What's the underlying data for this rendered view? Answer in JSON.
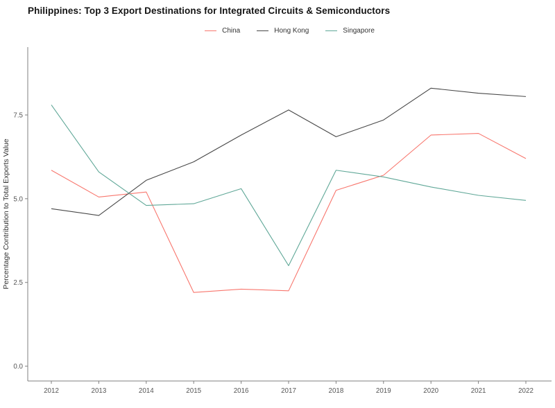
{
  "title": "Philippines: Top 3 Export Destinations for Integrated Circuits & Semiconductors",
  "chart_data": {
    "type": "line",
    "x": [
      2012,
      2013,
      2014,
      2015,
      2016,
      2017,
      2018,
      2019,
      2020,
      2021,
      2022
    ],
    "series": [
      {
        "name": "China",
        "color": "#F8766D",
        "values": [
          5.85,
          5.05,
          5.2,
          2.2,
          2.3,
          2.25,
          5.25,
          5.7,
          6.9,
          6.95,
          6.2
        ]
      },
      {
        "name": "Hong Kong",
        "color": "#474747",
        "values": [
          4.7,
          4.5,
          5.55,
          6.1,
          6.9,
          7.65,
          6.85,
          7.35,
          8.3,
          8.15,
          8.05
        ]
      },
      {
        "name": "Singapore",
        "color": "#5FA797",
        "values": [
          7.8,
          5.8,
          4.8,
          4.85,
          5.3,
          3.0,
          5.85,
          5.65,
          5.35,
          5.1,
          4.95
        ]
      }
    ],
    "xlabel": "",
    "ylabel": "Percentage Contribution to Total Exports Value",
    "yticks": [
      0.0,
      2.5,
      5.0,
      7.5
    ],
    "ylim": [
      -0.45,
      9.55
    ],
    "grid": false,
    "legend_position": "top"
  }
}
